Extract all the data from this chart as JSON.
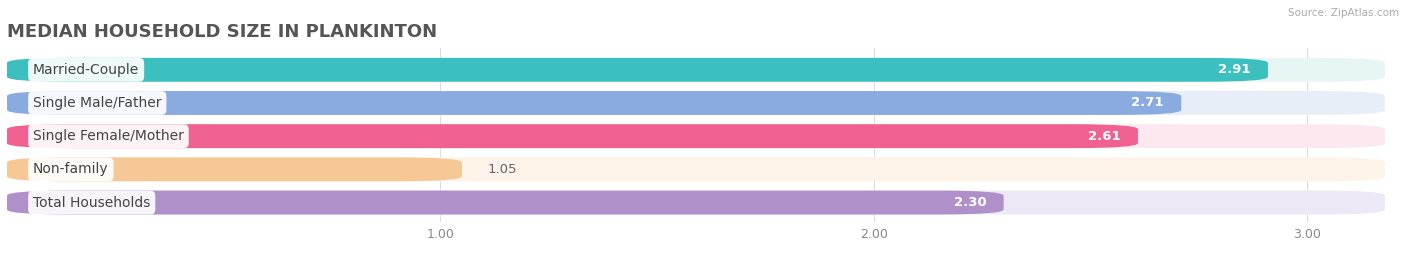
{
  "title": "MEDIAN HOUSEHOLD SIZE IN PLANKINTON",
  "source": "Source: ZipAtlas.com",
  "categories": [
    "Married-Couple",
    "Single Male/Father",
    "Single Female/Mother",
    "Non-family",
    "Total Households"
  ],
  "values": [
    2.91,
    2.71,
    2.61,
    1.05,
    2.3
  ],
  "bar_colors": [
    "#3bbfbf",
    "#8aabdf",
    "#f06090",
    "#f5c896",
    "#b090c8"
  ],
  "bar_bg_colors": [
    "#e8f5f5",
    "#e8eef8",
    "#fce8ef",
    "#fdf3e8",
    "#ede8f5"
  ],
  "xlim": [
    0,
    3.18
  ],
  "xticks": [
    1.0,
    2.0,
    3.0
  ],
  "label_fontsize": 10,
  "value_fontsize": 9.5,
  "title_fontsize": 13,
  "background_color": "#ffffff"
}
